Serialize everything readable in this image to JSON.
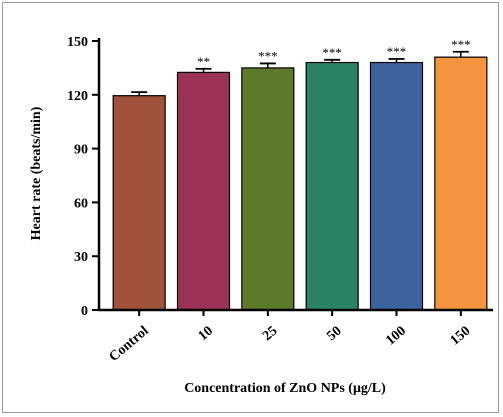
{
  "chart_data": {
    "type": "bar",
    "title": "",
    "xlabel": "Concentration of ZnO NPs (μg/L)",
    "ylabel": "Heart rate (beats/min)",
    "ylim": [
      0,
      150
    ],
    "yticks": [
      "0",
      "30",
      "60",
      "90",
      "120",
      "150"
    ],
    "categories": [
      "Control",
      "10",
      "25",
      "50",
      "100",
      "150"
    ],
    "values": [
      119.5,
      132.5,
      135,
      138,
      138,
      141
    ],
    "errors": [
      2.0,
      2.0,
      2.5,
      1.5,
      2.0,
      3.0
    ],
    "significance": [
      "",
      "**",
      "***",
      "***",
      "***",
      "***"
    ],
    "colors": [
      "#A0523A",
      "#9B3358",
      "#5B7A2A",
      "#2A8366",
      "#3D62A0",
      "#F79440"
    ],
    "grid": false,
    "legend": "none"
  }
}
